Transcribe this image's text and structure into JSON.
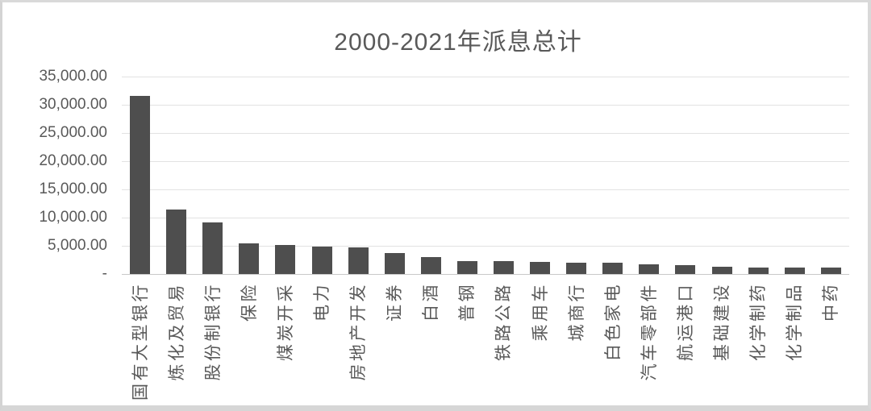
{
  "chart_data": {
    "type": "bar",
    "title": "2000-2021年派息总计",
    "xlabel": "",
    "ylabel": "",
    "categories": [
      "国有大型银行",
      "炼化及贸易",
      "股份制银行",
      "保险",
      "煤炭开采",
      "电力",
      "房地产开发",
      "证券",
      "白酒",
      "普钢",
      "铁路公路",
      "乘用车",
      "城商行",
      "白色家电",
      "汽车零部件",
      "航运港口",
      "基础建设",
      "化学制药",
      "化学制品",
      "中药"
    ],
    "values": [
      31600,
      11500,
      9200,
      5450,
      5200,
      4900,
      4750,
      3650,
      2950,
      2350,
      2300,
      2100,
      2050,
      2000,
      1650,
      1550,
      1300,
      1150,
      1100,
      1100
    ],
    "ylim": [
      0,
      35000
    ],
    "ytick_step": 5000,
    "ytick_labels": [
      "-",
      "5,000.00",
      "10,000.00",
      "15,000.00",
      "20,000.00",
      "25,000.00",
      "30,000.00",
      "35,000.00"
    ],
    "grid": true,
    "legend": null,
    "bar_color": "#4e4e4e",
    "text_color": "#595959",
    "gridline_color": "#e2e2e2"
  }
}
